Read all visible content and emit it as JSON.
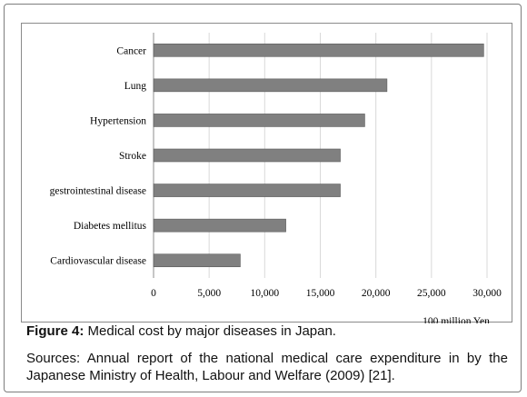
{
  "caption": {
    "label": "Figure 4:",
    "text": " Medical cost by major diseases in Japan."
  },
  "sources": "Sources: Annual report of the national medical care expenditure in by the Japanese Ministry of Health, Labour and Welfare (2009) [21].",
  "chart_data": {
    "type": "bar",
    "orientation": "horizontal",
    "categories": [
      "Cancer",
      "Lung",
      "Hypertension",
      "Stroke",
      "gestrointestinal disease",
      "Diabetes mellitus",
      "Cardiovascular disease"
    ],
    "values": [
      29700,
      21000,
      19000,
      16800,
      16800,
      11900,
      7800
    ],
    "xlabel": "100 million Yen",
    "xlim": [
      0,
      30000
    ],
    "xticks": [
      0,
      5000,
      10000,
      15000,
      20000,
      25000,
      30000
    ],
    "xtick_labels": [
      "0",
      "5,000",
      "10,000",
      "15,000",
      "20,000",
      "25,000",
      "30,000"
    ],
    "grid": "vertical",
    "colors": {
      "bar": "#808080",
      "bar_edge": "#5a5a5a",
      "grid": "#d9d9d9",
      "axis": "#8c8c8c"
    }
  }
}
